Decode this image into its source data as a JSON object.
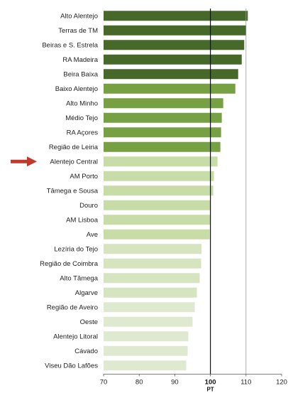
{
  "chart_data": {
    "type": "bar",
    "orientation": "horizontal",
    "categories": [
      "Alto Alentejo",
      "Terras de TM",
      "Beiras e S. Estrela",
      "RA Madeira",
      "Beira Baixa",
      "Baixo Alentejo",
      "Alto Minho",
      "Médio Tejo",
      "RA Açores",
      "Região de Leiria",
      "Alentejo Central",
      "AM Porto",
      "Tâmega e Sousa",
      "Douro",
      "AM Lisboa",
      "Ave",
      "Lezíria do Tejo",
      "Região de Coimbra",
      "Alto Tâmega",
      "Algarve",
      "Região de Aveiro",
      "Oeste",
      "Alentejo Litoral",
      "Cávado",
      "Viseu Dão Lafões"
    ],
    "values": [
      110.5,
      110,
      109.5,
      108.8,
      107.8,
      107,
      103.6,
      103.2,
      103,
      102.8,
      102,
      101,
      100.8,
      100,
      100,
      99.8,
      97.5,
      97.4,
      97,
      96.2,
      95.6,
      95,
      93.8,
      93.6,
      93.2
    ],
    "colors": [
      "#46692a",
      "#46692a",
      "#46692a",
      "#46692a",
      "#46692a",
      "#77a043",
      "#77a043",
      "#77a043",
      "#77a043",
      "#77a043",
      "#c8dca8",
      "#c8dca8",
      "#c8dca8",
      "#c8dca8",
      "#c8dca8",
      "#c8dca8",
      "#d6e4c0",
      "#d6e4c0",
      "#d6e4c0",
      "#d6e4c0",
      "#dfe9cf",
      "#dfe9cf",
      "#dfe9cf",
      "#dfe9cf",
      "#dfe9cf"
    ],
    "xlim": [
      70,
      120
    ],
    "xticks": [
      70,
      80,
      90,
      100,
      110,
      120
    ],
    "reference_line": {
      "value": 100,
      "label": "PT"
    },
    "highlight": {
      "category": "Alentejo Central",
      "marker": "arrow",
      "color": "#c0392b"
    },
    "gridlines": "vertical-at-110",
    "legend": "none"
  }
}
